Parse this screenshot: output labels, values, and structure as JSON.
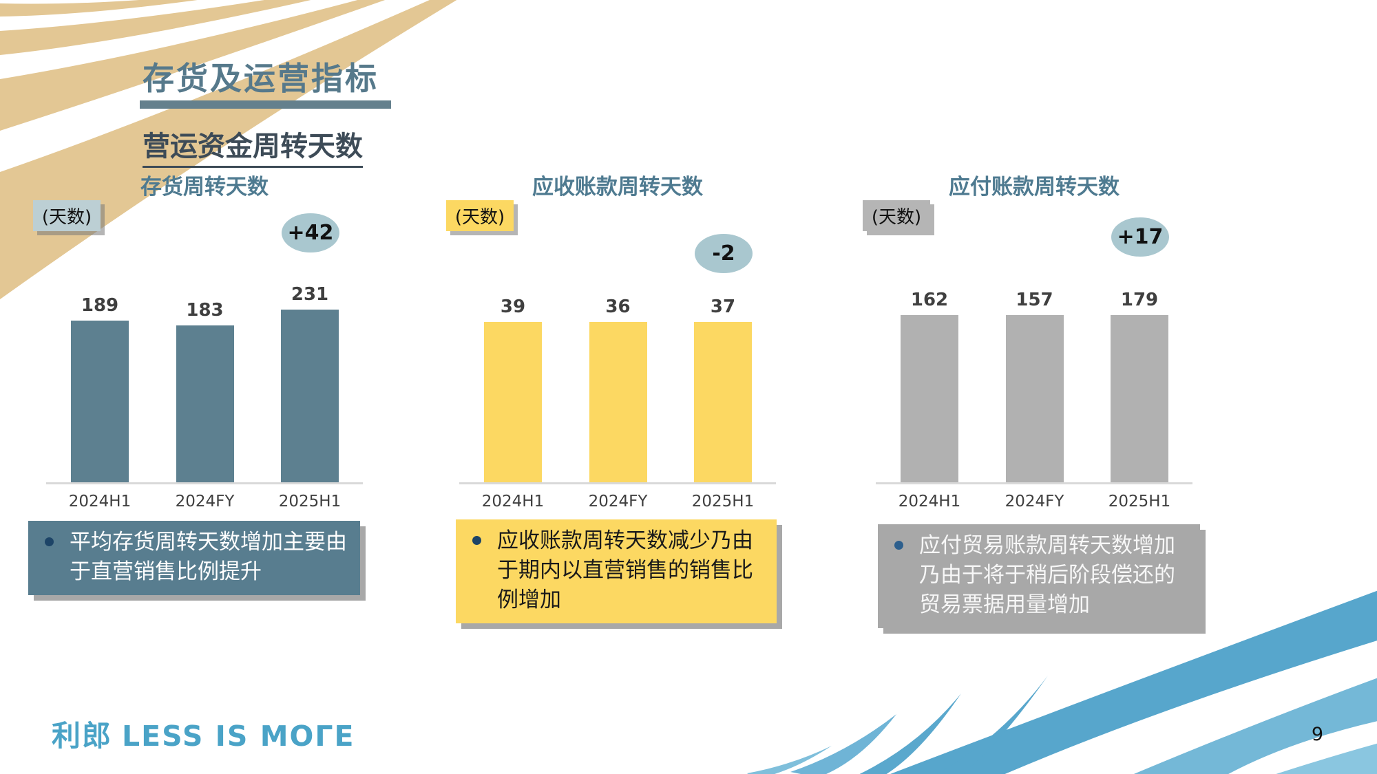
{
  "page": {
    "title": "存货及运营指标",
    "subtitle": "营运资金周转天数"
  },
  "footer": {
    "logo_cn": "利郎",
    "logo_en": "LESS IS MOΓE",
    "page_number": "9"
  },
  "colors": {
    "title_blue": "#56798b",
    "chart_title_blue": "#4e7a90",
    "badge_fill": "#a9c7cf",
    "slate": "#5d8090",
    "yellow": "#fcd862",
    "gray": "#b1b1b1",
    "logo_blue": "#4aa3c7",
    "axis_line": "#d9d9d9",
    "decor_tan": "#e3c794",
    "decor_blue": "#5aa8cd"
  },
  "chart_data": [
    {
      "type": "bar",
      "title": "存货周转天数",
      "unit_label": "(天数)",
      "categories": [
        "2024H1",
        "2024FY",
        "2025H1"
      ],
      "values": [
        189,
        183,
        231
      ],
      "delta_badge": "+42",
      "ylim": [
        0,
        231
      ],
      "grid": false,
      "bar_color": "#5d8090",
      "unit_bg": "#bccfd4",
      "note": "平均存货周转天数增加主要由于直营销售比例提升",
      "note_bg": "#587d8f",
      "note_color": "#ffffff",
      "bullet_color": "#1d4467"
    },
    {
      "type": "bar",
      "title": "应收账款周转天数",
      "unit_label": "(天数)",
      "categories": [
        "2024H1",
        "2024FY",
        "2025H1"
      ],
      "values": [
        39,
        36,
        37
      ],
      "delta_badge": "-2",
      "ylim": [
        0,
        39
      ],
      "grid": false,
      "bar_color": "#fcd862",
      "unit_bg": "#fcd862",
      "note": "应收账款周转天数减少乃由于期内以直营销售的销售比例增加",
      "note_bg": "#fcd862",
      "note_color": "#1a1a1a",
      "bullet_color": "#1d4467"
    },
    {
      "type": "bar",
      "title": "应付账款周转天数",
      "unit_label": "(天数)",
      "categories": [
        "2024H1",
        "2024FY",
        "2025H1"
      ],
      "values": [
        162,
        157,
        179
      ],
      "delta_badge": "+17",
      "ylim": [
        0,
        179
      ],
      "grid": false,
      "bar_color": "#b1b1b1",
      "unit_bg": "#b5b5b5",
      "note": "应付贸易账款周转天数增加乃由于将于稍后阶段偿还的贸易票据用量增加",
      "note_bg": "#a8a8a8",
      "note_color": "#f7f7f7",
      "bullet_color": "#2d5f8d"
    }
  ]
}
